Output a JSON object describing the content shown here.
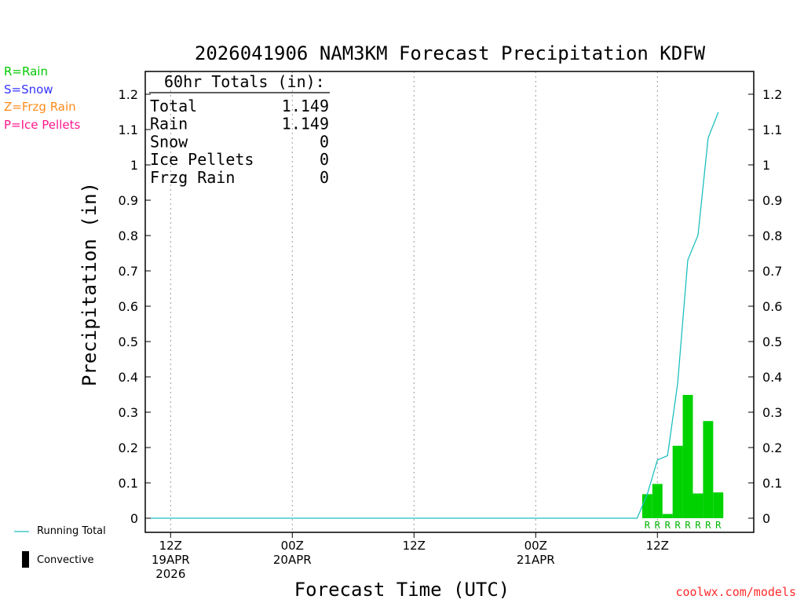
{
  "page": {
    "title": "2026041906 NAM3KM Forecast Precipitation KDFW",
    "credit": "coolwx.com/models"
  },
  "precip_legend": [
    {
      "label": "R=Rain",
      "color": "#00c800"
    },
    {
      "label": "S=Snow",
      "color": "#3333ff"
    },
    {
      "label": "Z=Frzg Rain",
      "color": "#ff8c1a"
    },
    {
      "label": "P=Ice Pellets",
      "color": "#ff1a8c"
    }
  ],
  "bottom_legend": {
    "running_total": "Running Total",
    "convective": "Convective"
  },
  "totals_box": {
    "header": "60hr Totals (in):",
    "rows": [
      {
        "label": "Total",
        "value": "1.149"
      },
      {
        "label": "Rain",
        "value": "1.149"
      },
      {
        "label": "Snow",
        "value": "0"
      },
      {
        "label": "Ice Pellets",
        "value": "0"
      },
      {
        "label": "Frzg Rain",
        "value": "0"
      }
    ]
  },
  "chart_data": {
    "type": "bar",
    "title": "2026041906 NAM3KM Forecast Precipitation KDFW",
    "xlabel": "Forecast Time (UTC)",
    "ylabel": "Precipitation (in)",
    "ylim": [
      0,
      1.25
    ],
    "y_ticks": [
      "0",
      "0.1",
      "0.2",
      "0.3",
      "0.4",
      "0.5",
      "0.6",
      "0.7",
      "0.8",
      "0.9",
      "1",
      "1.1",
      "1.2"
    ],
    "x_unit": "forecast hour",
    "xlim": [
      3.5,
      63.5
    ],
    "x_ticks": [
      {
        "hour": 6,
        "lines": [
          "12Z",
          "19APR",
          "2026"
        ]
      },
      {
        "hour": 18,
        "lines": [
          "00Z",
          "20APR"
        ]
      },
      {
        "hour": 30,
        "lines": [
          "12Z"
        ]
      },
      {
        "hour": 42,
        "lines": [
          "00Z",
          "21APR"
        ]
      },
      {
        "hour": 54,
        "lines": [
          "12Z"
        ]
      }
    ],
    "grid": "dotted vertical",
    "bar_color": "#00d200",
    "running_total_color": "#1fbfbf",
    "bars": [
      {
        "hour": 53,
        "value": 0.068,
        "type": "R"
      },
      {
        "hour": 54,
        "value": 0.097,
        "type": "R"
      },
      {
        "hour": 55,
        "value": 0.012,
        "type": "R"
      },
      {
        "hour": 56,
        "value": 0.205,
        "type": "R"
      },
      {
        "hour": 57,
        "value": 0.349,
        "type": "R"
      },
      {
        "hour": 58,
        "value": 0.07,
        "type": "R"
      },
      {
        "hour": 59,
        "value": 0.275,
        "type": "R"
      },
      {
        "hour": 60,
        "value": 0.073,
        "type": "R"
      }
    ],
    "running_total": {
      "name": "Running Total",
      "x": [
        4,
        52,
        53,
        54,
        55,
        56,
        57,
        58,
        59,
        60
      ],
      "y": [
        0,
        0,
        0.068,
        0.165,
        0.177,
        0.382,
        0.731,
        0.801,
        1.076,
        1.149
      ]
    }
  }
}
